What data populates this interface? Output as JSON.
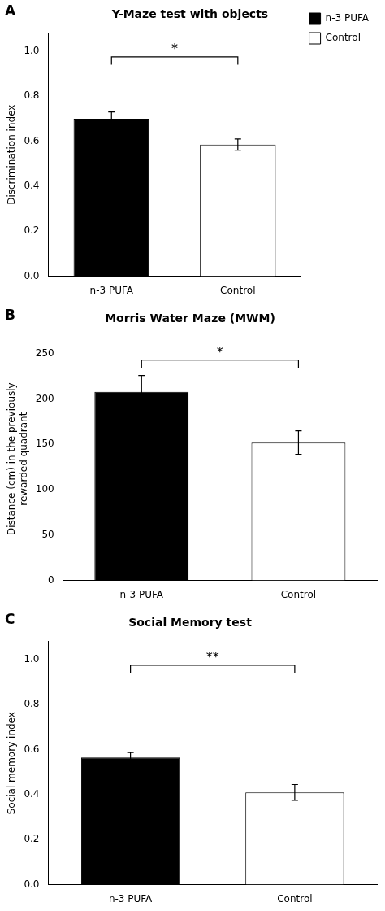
{
  "chart_data": [
    {
      "type": "bar",
      "title": "Y-Maze test with objects",
      "panel_label": "A",
      "categories": [
        "n-3 PUFA",
        "Control"
      ],
      "values": [
        0.7,
        0.585
      ],
      "errors": [
        0.03,
        0.025
      ],
      "colors": [
        "#000000",
        "#ffffff"
      ],
      "ylabel": "Discrimination index",
      "ylim": [
        0,
        1.08
      ],
      "yticks": [
        {
          "value": 0,
          "label": "0.0"
        },
        0.2,
        0.4,
        0.6,
        0.8,
        {
          "value": 1.0,
          "label": "1.0"
        }
      ],
      "annotations": [
        {
          "text": "*",
          "y": 0.975,
          "bracket_y": 0.94
        }
      ],
      "grid": false,
      "legend": "right"
    },
    {
      "type": "bar",
      "title": "Morris Water Maze (MWM)",
      "panel_label": "B",
      "categories": [
        "n-3 PUFA",
        "Control"
      ],
      "values": [
        208,
        152
      ],
      "errors": [
        18,
        13
      ],
      "colors": [
        "#000000",
        "#ffffff"
      ],
      "ylabel": "Distance (cm) in the previously\nrewarded quadrant",
      "ylim": [
        0,
        268
      ],
      "yticks": [
        0,
        50,
        100,
        150,
        200,
        250
      ],
      "annotations": [
        {
          "text": "*",
          "y": 243,
          "bracket_y": 234
        }
      ],
      "grid": false
    },
    {
      "type": "bar",
      "title": "Social Memory test",
      "panel_label": "C",
      "categories": [
        "n-3 PUFA",
        "Control"
      ],
      "values": [
        0.565,
        0.41
      ],
      "errors": [
        0.022,
        0.035
      ],
      "colors": [
        "#000000",
        "#ffffff"
      ],
      "ylabel": "Social memory index",
      "ylim": [
        0,
        1.08
      ],
      "yticks": [
        {
          "value": 0,
          "label": "0.0"
        },
        0.2,
        0.4,
        0.6,
        0.8,
        {
          "value": 1.0,
          "label": "1.0"
        }
      ],
      "annotations": [
        {
          "text": "**",
          "y": 0.975,
          "bracket_y": 0.94
        }
      ],
      "grid": false
    }
  ]
}
